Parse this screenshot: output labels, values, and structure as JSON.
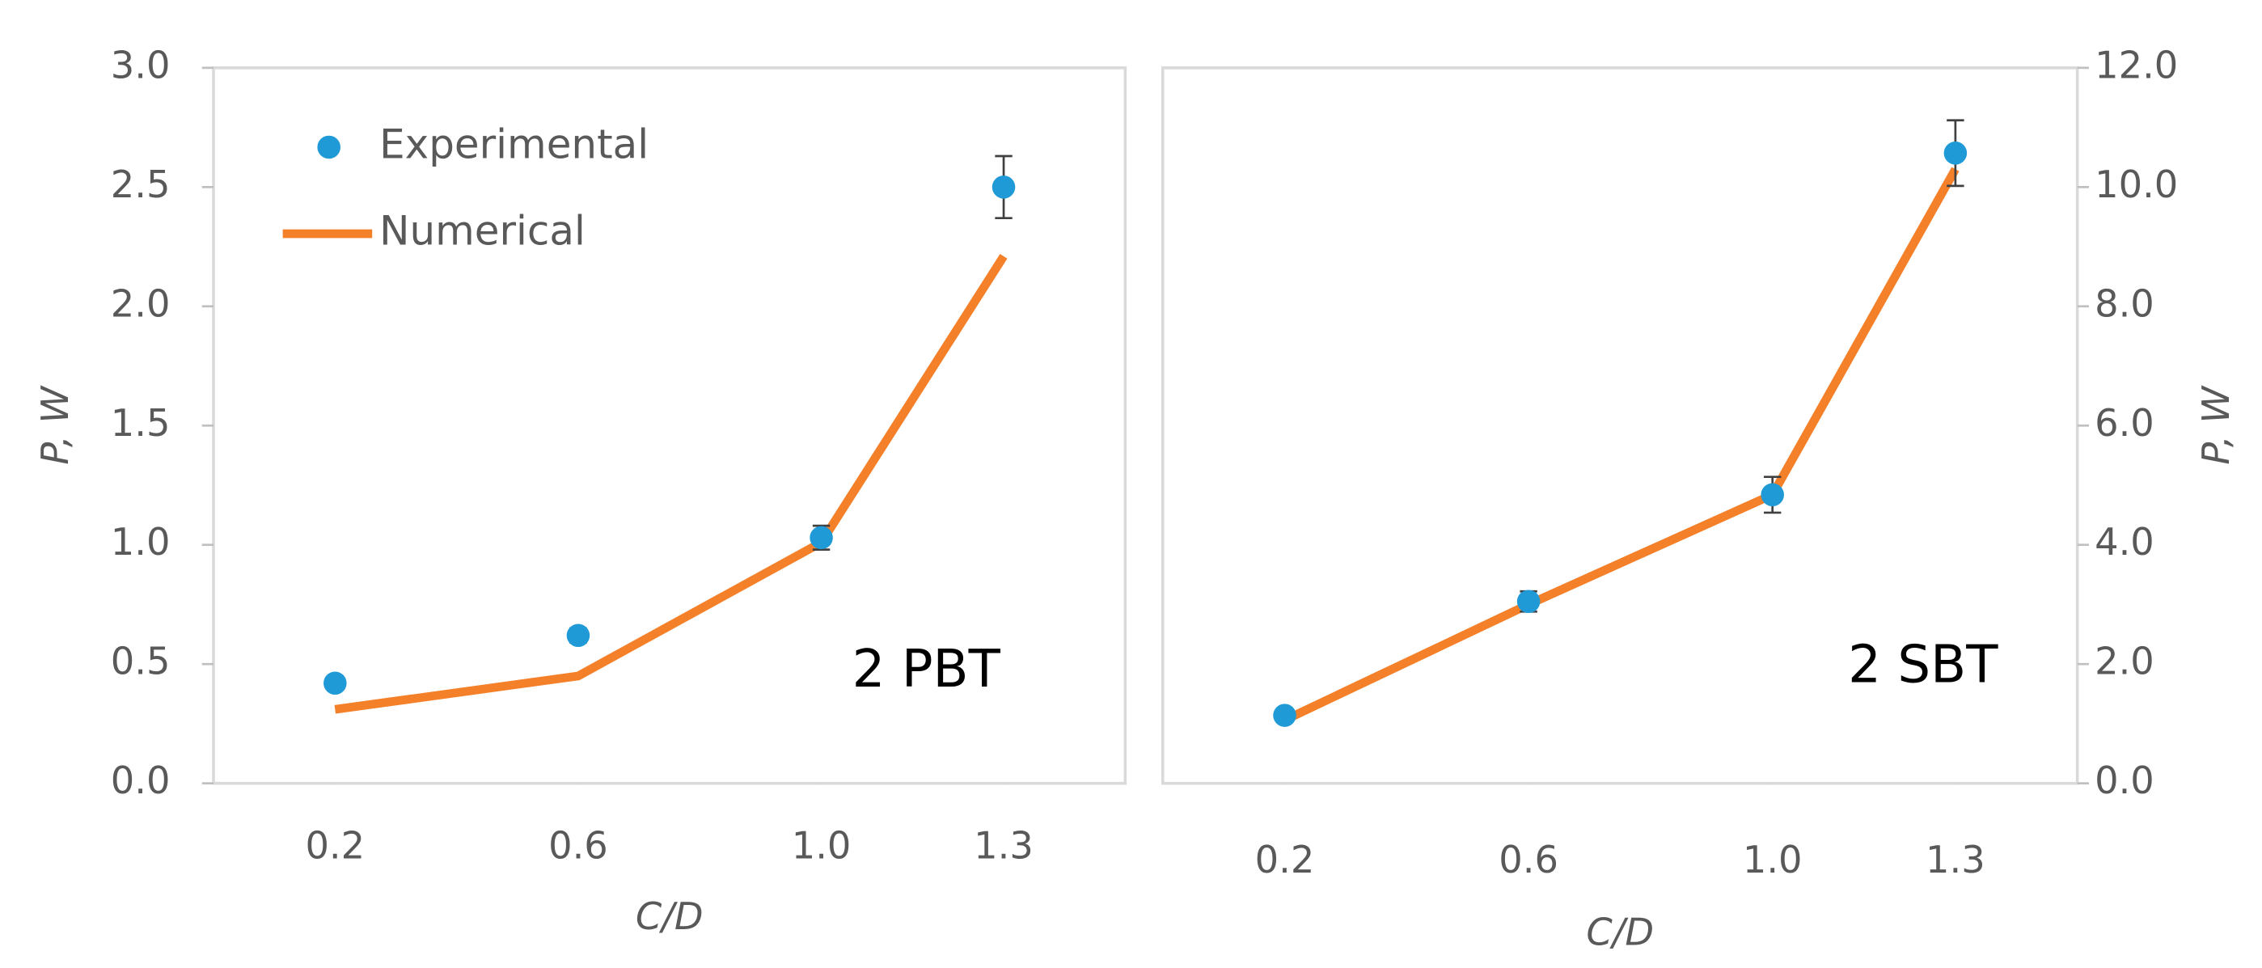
{
  "chart_data": [
    {
      "type": "line",
      "annotation": "2 PBT",
      "xlabel": "C/D",
      "ylabel": "P, W",
      "x": [
        0.2,
        0.6,
        1.0,
        1.3
      ],
      "xlim": [
        0,
        1.5
      ],
      "xticks": [
        0.2,
        0.6,
        {
          "value": 1.0,
          "label": "1.0"
        },
        1.3
      ],
      "ylim": [
        0,
        3
      ],
      "yticks": [
        {
          "value": 0,
          "label": "0.0"
        },
        0.5,
        {
          "value": 1,
          "label": "1.0"
        },
        1.5,
        {
          "value": 2,
          "label": "2.0"
        },
        2.5,
        {
          "value": 3,
          "label": "3.0"
        }
      ],
      "y_axis_side": "left",
      "legend": "upper left",
      "series": [
        {
          "name": "Experimental",
          "type": "scatter",
          "color": "#1f9ad6",
          "values": [
            0.42,
            0.62,
            1.03,
            2.5
          ],
          "errors": [
            0.02,
            0.03,
            0.05,
            0.13
          ]
        },
        {
          "name": "Numerical",
          "type": "line",
          "color": "#f5802a",
          "values": [
            0.31,
            0.45,
            1.01,
            2.21
          ]
        }
      ]
    },
    {
      "type": "line",
      "annotation": "2 SBT",
      "xlabel": "C/D",
      "ylabel": "P, W",
      "x": [
        0.2,
        0.6,
        1.0,
        1.3
      ],
      "xlim": [
        0,
        1.5
      ],
      "xticks": [
        0.2,
        0.6,
        {
          "value": 1.0,
          "label": "1.0"
        },
        1.3
      ],
      "ylim": [
        0,
        12
      ],
      "yticks": [
        {
          "value": 0,
          "label": "0.0"
        },
        {
          "value": 2,
          "label": "2.0"
        },
        {
          "value": 4,
          "label": "4.0"
        },
        {
          "value": 6,
          "label": "6.0"
        },
        {
          "value": 8,
          "label": "8.0"
        },
        {
          "value": 10,
          "label": "10.0"
        },
        {
          "value": 12,
          "label": "12.0"
        }
      ],
      "y_axis_side": "right",
      "series": [
        {
          "type": "scatter",
          "color": "#1f9ad6",
          "values": [
            1.14,
            3.05,
            4.84,
            10.57
          ],
          "errors": [
            0.1,
            0.17,
            0.3,
            0.55
          ]
        },
        {
          "type": "line",
          "color": "#f5802a",
          "values": [
            1.06,
            3.0,
            4.84,
            10.3
          ]
        }
      ]
    }
  ]
}
